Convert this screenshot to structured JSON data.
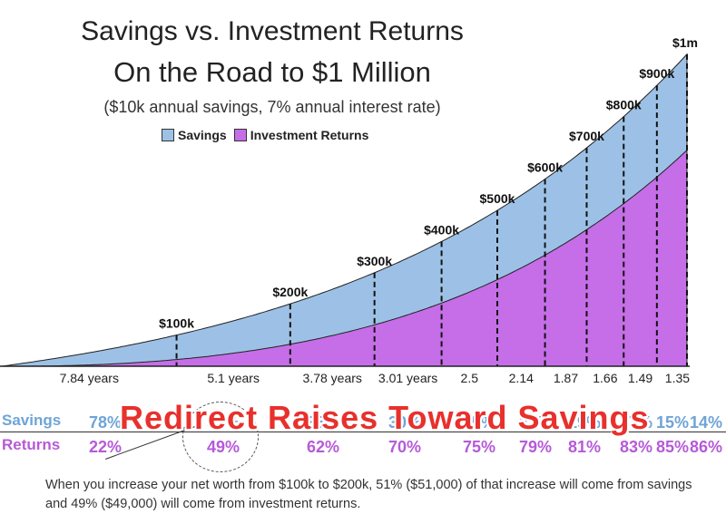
{
  "chart_data": {
    "type": "area",
    "title": "Savings vs. Investment Returns",
    "subtitle": "On the Road to $1 Million",
    "note": "($10k annual savings, 7% annual interest rate)",
    "legend": [
      "Savings",
      "Investment Returns"
    ],
    "legend_placement": "top-center",
    "series": [
      {
        "name": "Savings",
        "color": "#9dc1e6"
      },
      {
        "name": "Investment Returns",
        "color": "#c56ee8"
      }
    ],
    "milestones": [
      {
        "label": "$100k",
        "years_to_reach": "7.84 years",
        "savings_pct": "78%",
        "returns_pct": "22%"
      },
      {
        "label": "$200k",
        "years_to_reach": "5.1 years",
        "savings_pct": "51%",
        "returns_pct": "49%"
      },
      {
        "label": "$300k",
        "years_to_reach": "3.78 years",
        "savings_pct": "38%",
        "returns_pct": "62%"
      },
      {
        "label": "$400k",
        "years_to_reach": "3.01 years",
        "savings_pct": "30%",
        "returns_pct": "70%"
      },
      {
        "label": "$500k",
        "years_to_reach": "2.5",
        "savings_pct": "25%",
        "returns_pct": "75%"
      },
      {
        "label": "$600k",
        "years_to_reach": "2.14",
        "savings_pct": "21%",
        "returns_pct": "79%"
      },
      {
        "label": "$700k",
        "years_to_reach": "1.87",
        "savings_pct": "19%",
        "returns_pct": "81%"
      },
      {
        "label": "$800k",
        "years_to_reach": "1.66",
        "savings_pct": "17%",
        "returns_pct": "83%"
      },
      {
        "label": "$900k",
        "years_to_reach": "1.49",
        "savings_pct": "15%",
        "returns_pct": "85%"
      },
      {
        "label": "$1m",
        "years_to_reach": "1.35",
        "savings_pct": "14%",
        "returns_pct": "86%"
      }
    ],
    "grid": false
  },
  "rows": {
    "savings_label": "Savings",
    "returns_label": "Returns"
  },
  "banner": "Redirect Raises Toward Savings",
  "explanation": "When you increase your net worth from $100k to $200k, 51% ($51,000) of that increase will come from savings and 49% ($49,000) will come from investment returns."
}
